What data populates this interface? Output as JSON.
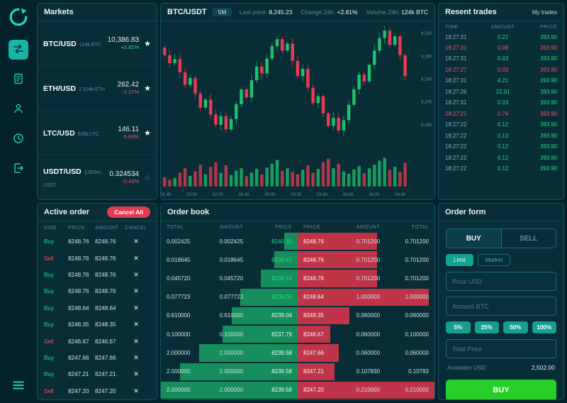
{
  "sidebar": {
    "icons": [
      "logo-icon",
      "exchange-icon",
      "orders-icon",
      "profile-icon",
      "history-icon",
      "logout-icon",
      "menu-icon"
    ]
  },
  "markets": {
    "title": "Markets",
    "rows": [
      {
        "pair": "BTC/USD",
        "volume": "124k BTC",
        "price": "10,386.83",
        "change": "+2.81%",
        "dir": "up",
        "starred": true
      },
      {
        "pair": "ETH/USD",
        "volume": "2.324k ETH",
        "price": "262.42",
        "change": "-1.27%",
        "dir": "down",
        "starred": true
      },
      {
        "pair": "LTC/USD",
        "volume": "535k LTC",
        "price": "146.11",
        "change": "-5.63%",
        "dir": "down",
        "starred": true
      },
      {
        "pair": "USDT/USD",
        "volume": "3,653m USDT",
        "price": "0.324534",
        "change": "-0.43%",
        "dir": "down",
        "starred": false
      }
    ]
  },
  "chart": {
    "pair": "BTC/USDT",
    "timeframe": "5M",
    "last_price_label": "Last price:",
    "last_price": "8,245.23",
    "change_label": "Change 24h:",
    "change": "+2.81%",
    "volume_label": "Volume 24h:",
    "volume": "124k BTC"
  },
  "chart_data": {
    "type": "candlestick",
    "first_open": 8295,
    "closes": [
      8282,
      8268,
      8275,
      8252,
      8230,
      8242,
      8215,
      8190,
      8204,
      8178,
      8160,
      8175,
      8152,
      8170,
      8196,
      8222,
      8208,
      8238,
      8262,
      8250,
      8276,
      8298,
      8310,
      8290,
      8302,
      8272,
      8245,
      8258,
      8225,
      8198,
      8210,
      8180,
      8158,
      8172,
      8150,
      8168,
      8195,
      8222,
      8248,
      8236,
      8265,
      8290,
      8312,
      8325,
      8300,
      8315,
      8282,
      8245
    ],
    "volumes": [
      30,
      22,
      28,
      45,
      60,
      35,
      50,
      72,
      40,
      65,
      80,
      45,
      70,
      38,
      52,
      60,
      34,
      46,
      58,
      40,
      62,
      75,
      88,
      52,
      60,
      48,
      40,
      55,
      70,
      45,
      58,
      80,
      92,
      60,
      75,
      50,
      42,
      56,
      68,
      44,
      60,
      72,
      85,
      95,
      55,
      65,
      48,
      78
    ],
    "ylim": [
      8135,
      8335
    ],
    "yticks": [
      {
        "v": 8320,
        "label": "8,320"
      },
      {
        "v": 8280,
        "label": "8,280"
      },
      {
        "v": 8240,
        "label": "8,240"
      },
      {
        "v": 8200,
        "label": "8,200"
      },
      {
        "v": 8160,
        "label": "8,160"
      }
    ],
    "xticks": [
      "01:40",
      "02:00",
      "02:20",
      "02:40",
      "03:00",
      "03:20",
      "03:40",
      "04:00",
      "04:20",
      "04:40"
    ]
  },
  "recent_trades": {
    "title": "Resent trades",
    "my_trades_label": "My trades",
    "headers": [
      "TIME",
      "AMOUNT",
      "PRICE"
    ],
    "rows": [
      {
        "time": "18:27:31",
        "amount": "0.22",
        "price": "393.90",
        "side": "buy"
      },
      {
        "time": "18:27:31",
        "amount": "0.09",
        "price": "393.90",
        "side": "sell"
      },
      {
        "time": "18:27:31",
        "amount": "0.03",
        "price": "393.90",
        "side": "buy"
      },
      {
        "time": "18:27:27",
        "amount": "0.03",
        "price": "393.90",
        "side": "sell"
      },
      {
        "time": "18:27:31",
        "amount": "4.21",
        "price": "393.90",
        "side": "buy"
      },
      {
        "time": "18:27:26",
        "amount": "22.01",
        "price": "393.90",
        "side": "buy"
      },
      {
        "time": "18:27:31",
        "amount": "0.03",
        "price": "393.90",
        "side": "buy"
      },
      {
        "time": "18:27:21",
        "amount": "0.74",
        "price": "393.90",
        "side": "sell"
      },
      {
        "time": "18:27:22",
        "amount": "0.12",
        "price": "393.90",
        "side": "buy"
      },
      {
        "time": "18:27:22",
        "amount": "0.13",
        "price": "393.90",
        "side": "buy"
      },
      {
        "time": "18:27:22",
        "amount": "0.12",
        "price": "393.90",
        "side": "buy"
      },
      {
        "time": "18:27:22",
        "amount": "0.12",
        "price": "393.90",
        "side": "buy"
      },
      {
        "time": "18:27:22",
        "amount": "0.12",
        "price": "393.90",
        "side": "buy"
      }
    ]
  },
  "active_orders": {
    "title": "Active order",
    "cancel_all_label": "Cancel All",
    "headers": [
      "SIDE",
      "PRICE",
      "AMOUNT",
      "CANCEL"
    ],
    "rows": [
      {
        "side": "Buy",
        "price": "8248.76",
        "amount": "8248.76"
      },
      {
        "side": "Sell",
        "price": "8248.76",
        "amount": "8248.76"
      },
      {
        "side": "Buy",
        "price": "8248.76",
        "amount": "8248.76"
      },
      {
        "side": "Buy",
        "price": "8248.76",
        "amount": "8248.76"
      },
      {
        "side": "Buy",
        "price": "8248.64",
        "amount": "8248.64"
      },
      {
        "side": "Buy",
        "price": "8248.35",
        "amount": "8248.35"
      },
      {
        "side": "Sell",
        "price": "8246.67",
        "amount": "8246.67"
      },
      {
        "side": "Buy",
        "price": "8247.66",
        "amount": "8247.66"
      },
      {
        "side": "Buy",
        "price": "8247.21",
        "amount": "8247.21"
      },
      {
        "side": "Sell",
        "price": "8247.20",
        "amount": "8247.20"
      }
    ]
  },
  "order_book": {
    "title": "Order book",
    "headers_left": [
      "TOTAL",
      "AMOUNT",
      "PRICE"
    ],
    "headers_right": [
      "PRICE",
      "AMOUNT",
      "TOTAL"
    ],
    "bids": [
      {
        "total": "0.002425",
        "amount": "0.002425",
        "price": "8240.30",
        "fill": 0.1
      },
      {
        "total": "0.018645",
        "amount": "0.018645",
        "price": "8239.67",
        "fill": 0.17
      },
      {
        "total": "0.045720",
        "amount": "0.045720",
        "price": "8239.53",
        "fill": 0.27
      },
      {
        "total": "0.077723",
        "amount": "0.077723",
        "price": "8239.05",
        "fill": 0.42
      },
      {
        "total": "0.610000",
        "amount": "0.610000",
        "price": "8239.04",
        "fill": 0.48
      },
      {
        "total": "0.100000",
        "amount": "0.100000",
        "price": "8237.79",
        "fill": 0.55
      },
      {
        "total": "2.000000",
        "amount": "2.000000",
        "price": "8239.58",
        "fill": 0.72
      },
      {
        "total": "2.000000",
        "amount": "2.000000",
        "price": "8239.58",
        "fill": 0.86
      },
      {
        "total": "2.000000",
        "amount": "2.000000",
        "price": "8239.58",
        "fill": 1.0
      }
    ],
    "asks": [
      {
        "price": "8248.76",
        "amount": "0.701200",
        "total": "0.701200",
        "fill": 0.58
      },
      {
        "price": "8248.76",
        "amount": "0.701200",
        "total": "0.701200",
        "fill": 0.58
      },
      {
        "price": "8248.76",
        "amount": "0.701200",
        "total": "0.701200",
        "fill": 0.58
      },
      {
        "price": "8248.64",
        "amount": "1.000000",
        "total": "1.000000",
        "fill": 0.96
      },
      {
        "price": "8248.35",
        "amount": "0.060000",
        "total": "0.060000",
        "fill": 0.38
      },
      {
        "price": "8246.67",
        "amount": "0.060000",
        "total": "0.100000",
        "fill": 0.24
      },
      {
        "price": "8247.66",
        "amount": "0.060000",
        "total": "0.060000",
        "fill": 0.3
      },
      {
        "price": "8247.21",
        "amount": "0.107830",
        "total": "0.10783",
        "fill": 0.27
      },
      {
        "price": "8247.20",
        "amount": "0.210000",
        "total": "0.210000",
        "fill": 1.0
      }
    ]
  },
  "order_form": {
    "title": "Order form",
    "tabs": [
      "BUY",
      "SELL"
    ],
    "active_tab": "BUY",
    "type_options": [
      "Limit",
      "Market"
    ],
    "active_type": "Limit",
    "price_placeholder": "Price USD",
    "amount_placeholder": "Amount BTC",
    "percent_buttons": [
      "5%",
      "25%",
      "50%",
      "100%"
    ],
    "total_placeholder": "Total Price",
    "available_label": "Available USD",
    "available_value": "2,502.00",
    "submit_label": "BUY"
  }
}
